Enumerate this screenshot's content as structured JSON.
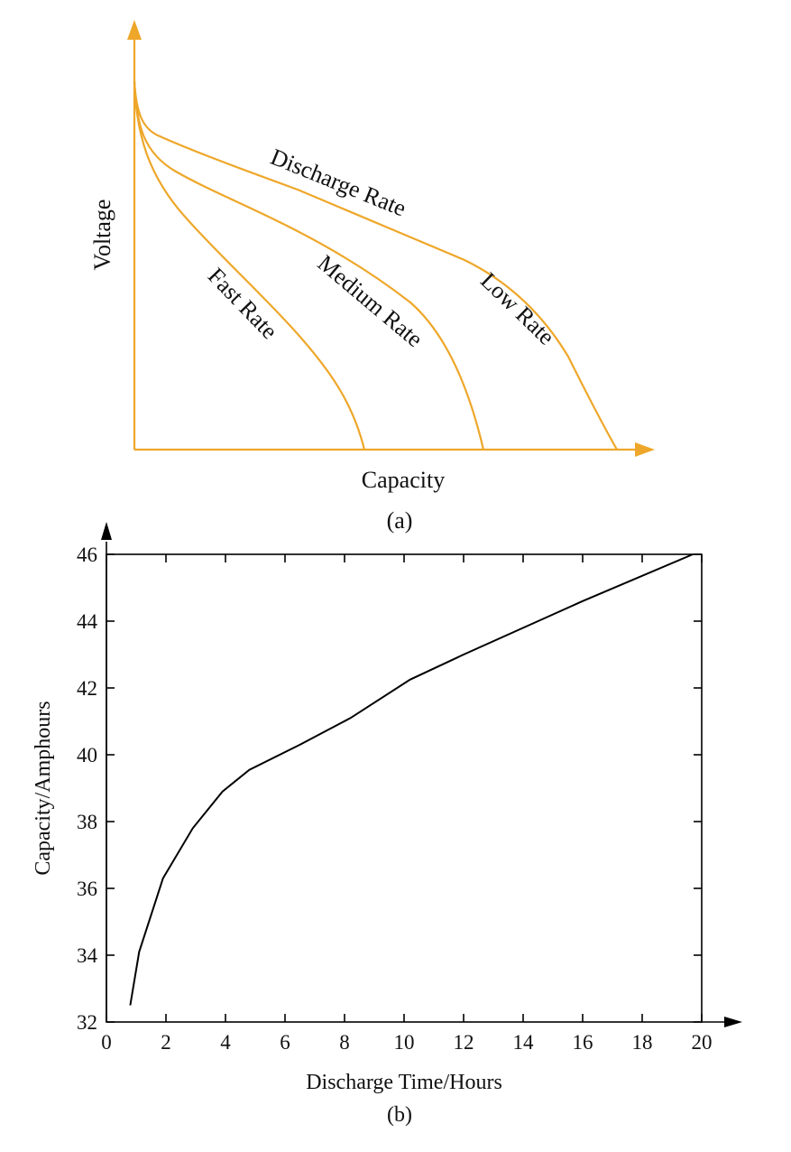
{
  "chart_data": [
    {
      "panel": "(a)",
      "type": "line",
      "xlabel": "Capacity",
      "ylabel": "Voltage",
      "accent_color": "#EEA72A",
      "axes_style": "arrows, no ticks",
      "annotation": "Discharge Rate",
      "series": [
        {
          "name": "Fast Rate"
        },
        {
          "name": "Medium Rate"
        },
        {
          "name": "Low Rate"
        }
      ]
    },
    {
      "panel": "(b)",
      "type": "line",
      "xlabel": "Discharge Time/Hours",
      "ylabel": "Capacity/Amphours",
      "xlim": [
        0,
        20
      ],
      "ylim": [
        32,
        46
      ],
      "xticks": [
        0,
        2,
        4,
        6,
        8,
        10,
        12,
        14,
        16,
        18,
        20
      ],
      "yticks": [
        32,
        34,
        36,
        38,
        40,
        42,
        44,
        46
      ],
      "line_color": "#000000",
      "grid": false,
      "x": [
        0.8,
        1.1,
        1.9,
        2.9,
        3.9,
        4.8,
        6.5,
        8.2,
        10.2,
        12.0,
        16.0,
        19.7
      ],
      "y": [
        32.5,
        34.1,
        36.3,
        37.8,
        38.9,
        39.55,
        40.3,
        41.1,
        42.25,
        43.0,
        44.6,
        46.0
      ]
    }
  ]
}
